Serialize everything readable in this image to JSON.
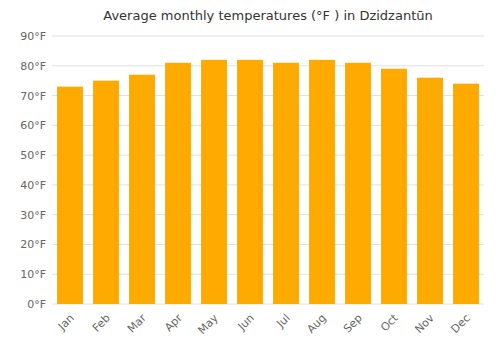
{
  "chart_data": {
    "type": "bar",
    "title": "Average monthly temperatures (°F ) in Dzidzantūn",
    "categories": [
      "Jan",
      "Feb",
      "Mar",
      "Apr",
      "May",
      "Jun",
      "Jul",
      "Aug",
      "Sep",
      "Oct",
      "Nov",
      "Dec"
    ],
    "values": [
      73,
      75,
      77,
      81,
      82,
      82,
      81,
      82,
      81,
      79,
      76,
      74
    ],
    "color": "#FFAA00",
    "ylim": [
      0,
      90
    ],
    "yticks": [
      {
        "value": 0,
        "label": "0°F"
      },
      {
        "value": 10,
        "label": "10°F"
      },
      {
        "value": 20,
        "label": "20°F"
      },
      {
        "value": 30,
        "label": "30°F"
      },
      {
        "value": 40,
        "label": "40°F"
      },
      {
        "value": 50,
        "label": "50°F"
      },
      {
        "value": 60,
        "label": "60°F"
      },
      {
        "value": 70,
        "label": "70°F"
      },
      {
        "value": 80,
        "label": "80°F"
      },
      {
        "value": 90,
        "label": "90°F"
      }
    ],
    "grid": true
  }
}
